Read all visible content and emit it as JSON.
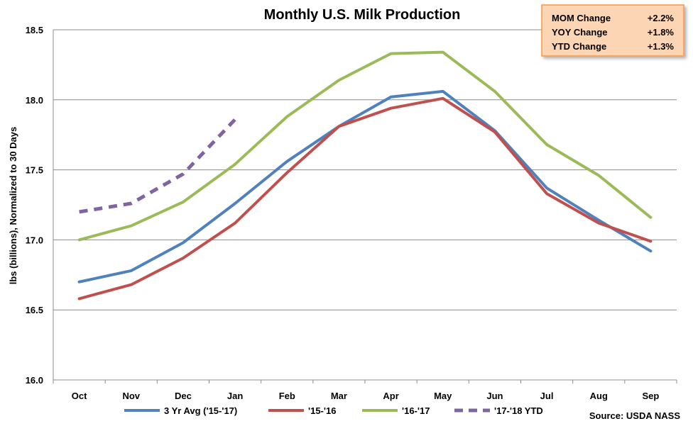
{
  "chart_data": {
    "type": "line",
    "title": "Monthly U.S. Milk Production",
    "ylabel": "lbs (billions), Normalized to 30 Days",
    "xlabel": "",
    "categories": [
      "Oct",
      "Nov",
      "Dec",
      "Jan",
      "Feb",
      "Mar",
      "Apr",
      "May",
      "Jun",
      "Jul",
      "Aug",
      "Sep"
    ],
    "ylim": [
      16.0,
      18.5
    ],
    "yticks": [
      "16.0",
      "16.5",
      "17.0",
      "17.5",
      "18.0",
      "18.5"
    ],
    "grid": true,
    "legend_position": "bottom",
    "series": [
      {
        "name": "3 Yr Avg ('15-'17)",
        "color": "#4f81bd",
        "dashed": false,
        "values": [
          16.7,
          16.78,
          16.98,
          17.26,
          17.56,
          17.81,
          18.02,
          18.06,
          17.78,
          17.37,
          17.14,
          16.92
        ]
      },
      {
        "name": "'15-'16",
        "color": "#c0504d",
        "dashed": false,
        "values": [
          16.58,
          16.68,
          16.87,
          17.12,
          17.48,
          17.81,
          17.94,
          18.01,
          17.77,
          17.33,
          17.12,
          16.99
        ]
      },
      {
        "name": "'16-'17",
        "color": "#9bbb59",
        "dashed": false,
        "values": [
          17.0,
          17.1,
          17.27,
          17.54,
          17.88,
          18.14,
          18.33,
          18.34,
          18.06,
          17.68,
          17.46,
          17.16
        ]
      },
      {
        "name": "'17-'18 YTD",
        "color": "#8064a2",
        "dashed": true,
        "values": [
          17.2,
          17.26,
          17.47,
          17.86,
          null,
          null,
          null,
          null,
          null,
          null,
          null,
          null
        ]
      }
    ],
    "source": "Source: USDA NASS"
  },
  "summary_box": {
    "rows": [
      {
        "label": "MOM Change",
        "value": "+2.2%"
      },
      {
        "label": "YOY Change",
        "value": "+1.8%"
      },
      {
        "label": "YTD Change",
        "value": "+1.3%"
      }
    ],
    "fill_color": "#fcd5b4",
    "border_color": "#f79646"
  }
}
